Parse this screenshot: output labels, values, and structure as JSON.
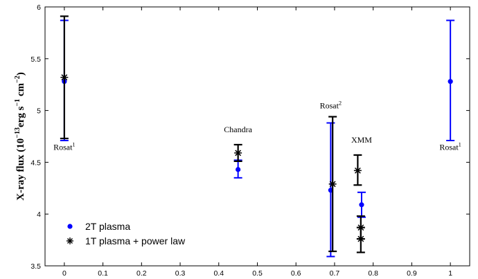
{
  "chart_data": {
    "type": "scatter",
    "title": "",
    "xlabel": "",
    "ylabel": {
      "prefix": "X-ray flux (10",
      "exp1": "−13",
      "mid1": "erg s",
      "exp2": "−1",
      "mid2": " cm",
      "exp3": "−2",
      "suffix": ")"
    },
    "xlim": [
      -0.05,
      1.05
    ],
    "ylim": [
      3.5,
      6.0
    ],
    "xticks": [
      0,
      0.1,
      0.2,
      0.3,
      0.4,
      0.5,
      0.6,
      0.7,
      0.8,
      0.9,
      1
    ],
    "xtick_labels": [
      "0",
      "0.1",
      "0.2",
      "0.3",
      "0.4",
      "0.5",
      "0.6",
      "0.7",
      "0.8",
      "0.9",
      "1"
    ],
    "yticks": [
      3.5,
      4,
      4.5,
      5,
      5.5,
      6
    ],
    "ytick_labels": [
      "3.5",
      "4",
      "4.5",
      "5",
      "5.5",
      "6"
    ],
    "grid": false,
    "legend_position": "bottom-left",
    "series": [
      {
        "name": "2T plasma",
        "color": "#0000ff",
        "marker": "circle",
        "points": [
          {
            "x": 0.0,
            "y": 5.28,
            "ylo": 4.71,
            "yhi": 5.87
          },
          {
            "x": 0.45,
            "y": 4.43,
            "ylo": 4.35,
            "yhi": 4.52
          },
          {
            "x": 0.69,
            "y": 4.23,
            "ylo": 3.59,
            "yhi": 4.88
          },
          {
            "x": 0.77,
            "y": 4.09,
            "ylo": 3.97,
            "yhi": 4.21
          },
          {
            "x": 1.0,
            "y": 5.28,
            "ylo": 4.71,
            "yhi": 5.87
          }
        ]
      },
      {
        "name": "1T plasma + power law",
        "color": "#000000",
        "marker": "asterisk",
        "points": [
          {
            "x": 0.0,
            "y": 5.32,
            "ylo": 4.73,
            "yhi": 5.91
          },
          {
            "x": 0.45,
            "y": 4.59,
            "ylo": 4.51,
            "yhi": 4.67
          },
          {
            "x": 0.695,
            "y": 4.29,
            "ylo": 3.64,
            "yhi": 4.94
          },
          {
            "x": 0.76,
            "y": 4.42,
            "ylo": 4.28,
            "yhi": 4.57
          },
          {
            "x": 0.768,
            "y": 3.87,
            "ylo": 3.76,
            "yhi": 3.98
          },
          {
            "x": 0.768,
            "y": 3.76,
            "ylo": 3.63,
            "yhi": 3.87
          }
        ]
      }
    ],
    "annotations": [
      {
        "name": "rosat-left",
        "text": "Rosat",
        "sup": "1",
        "x": 0.0,
        "y": 4.62
      },
      {
        "name": "chandra",
        "text": "Chandra",
        "sup": "",
        "x": 0.45,
        "y": 4.79
      },
      {
        "name": "rosat-2",
        "text": "Rosat",
        "sup": "2",
        "x": 0.69,
        "y": 5.02
      },
      {
        "name": "xmm",
        "text": "XMM",
        "sup": "",
        "x": 0.77,
        "y": 4.69
      },
      {
        "name": "rosat-right",
        "text": "Rosat",
        "sup": "1",
        "x": 1.0,
        "y": 4.62
      }
    ]
  }
}
